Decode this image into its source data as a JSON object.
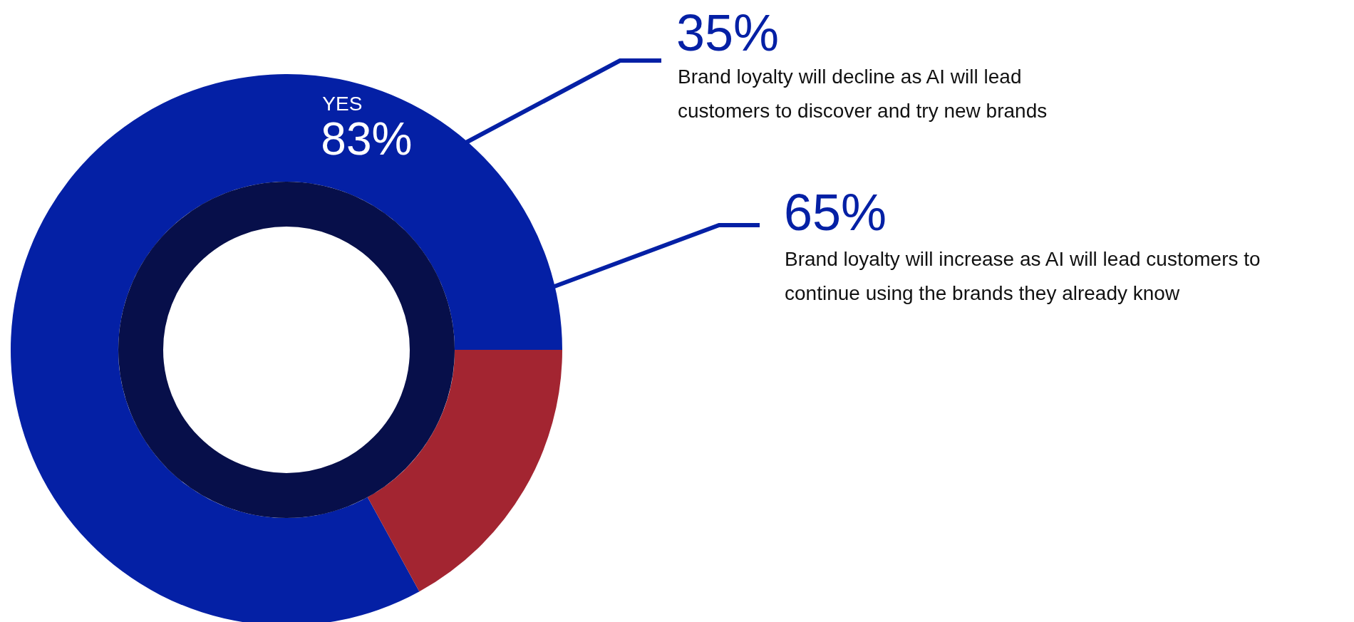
{
  "chart_data": {
    "type": "donut",
    "categories": [
      "YES",
      null
    ],
    "values": [
      83,
      17
    ],
    "colors": [
      "#0420a5",
      "#a32531"
    ],
    "value_labels": [
      "83%",
      null
    ],
    "legend": false,
    "annotations": [
      "35%",
      "Brand loyalty will decline as AI will lead customers to discover and try new brands",
      "65%",
      "Brand loyalty will increase as AI will lead customers to continue using the brands they already know"
    ]
  }
}
